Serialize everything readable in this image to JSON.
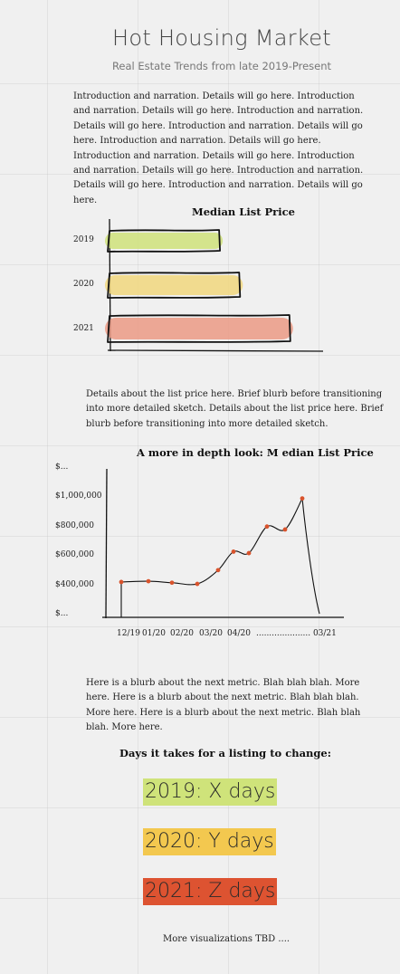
{
  "header": {
    "title": "Hot Housing Market",
    "subtitle": "Real Estate Trends from late 2019-Present"
  },
  "intro": {
    "text": "Introduction and narration. Details will go here.  Introduction and narration. Details will go here.  Introduction and narration. Details will go here.  Introduction and narration. Details will go here. Introduction and narration. Details will go here. Introduction and narration. Details will go here. Introduction and narration. Details will go here. Introduction and narration. Details will go here. Introduction and narration. Details will go here."
  },
  "chart_data": [
    {
      "type": "bar",
      "orientation": "horizontal",
      "title": "Median List Price",
      "categories": [
        "2019",
        "2020",
        "2021"
      ],
      "values": [
        0.55,
        0.65,
        0.9
      ],
      "colors": [
        "#cfe27a",
        "#f1d77e",
        "#eb9a85"
      ]
    },
    {
      "type": "line",
      "title": "A more in depth look: M edian List Price",
      "y_tick_labels": [
        "$...",
        "$1,000,000",
        "$800,000",
        "$600,000",
        "$400,000",
        "$..."
      ],
      "x_tick_labels": [
        "12/19",
        "01/20",
        "02/20",
        "03/20",
        "04/20",
        "..................... 03/21"
      ],
      "points": [
        {
          "x": 0,
          "y": 425000
        },
        {
          "x": 1,
          "y": 430000
        },
        {
          "x": 2,
          "y": 420000
        },
        {
          "x": 3,
          "y": 412000
        },
        {
          "x": 4,
          "y": 505000
        },
        {
          "x": 5,
          "y": 630000
        },
        {
          "x": 6,
          "y": 620000
        },
        {
          "x": 7,
          "y": 800000
        },
        {
          "x": 8,
          "y": 780000
        },
        {
          "x": 9,
          "y": 990000
        }
      ],
      "point_color": "#d9532c"
    }
  ],
  "list_blurb": {
    "text": "Details about the list price here. Brief blurb before transitioning into more detailed sketch. Details about the list price here. Brief blurb before transitioning into more detailed sketch."
  },
  "metric_blurb": {
    "text": "Here is a blurb about the next metric. Blah blah blah. More here. Here is a blurb about the next metric. Blah blah blah. More here.  Here is a blurb about the next metric. Blah blah blah. More here."
  },
  "days_section": {
    "title": "Days it takes for a listing to change:",
    "items": [
      {
        "label": "2019: X days",
        "color": "#cfe37a"
      },
      {
        "label": "2020: Y days",
        "color": "#f3c84f"
      },
      {
        "label": "2021: Z days",
        "color": "#dd5331"
      }
    ]
  },
  "footer": {
    "text": "More visualizations TBD ...."
  }
}
